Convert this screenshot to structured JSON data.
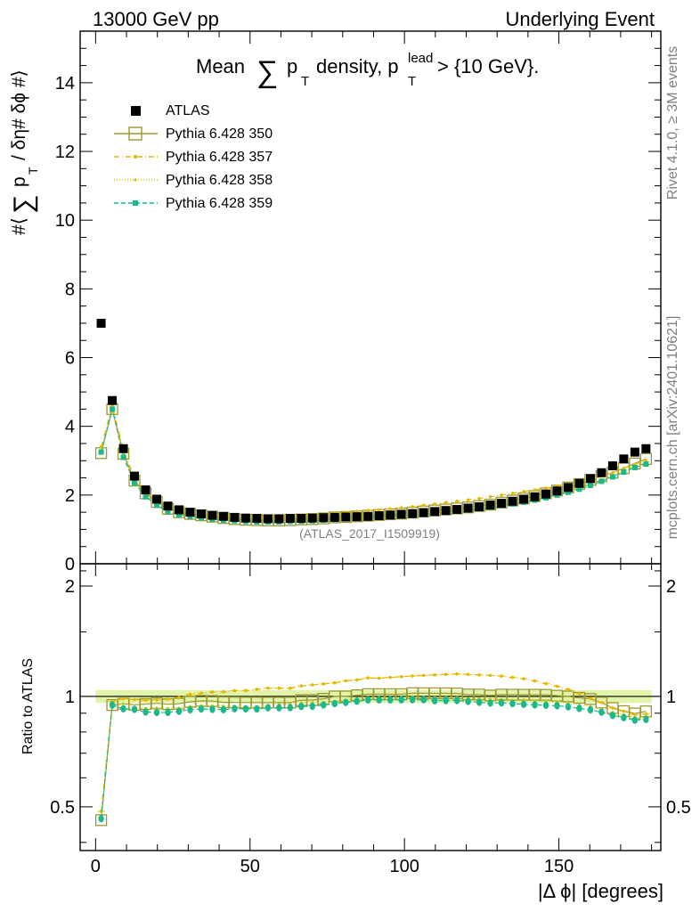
{
  "header": {
    "left": "13000 GeV pp",
    "right": "Underlying Event"
  },
  "side": {
    "rivet": "Rivet 4.1.0, ≥ 3M events",
    "mcplots": "mcplots.cern.ch [arXiv:2401.10621]"
  },
  "chart_data": [
    {
      "type": "scatter",
      "panel": "main",
      "title_parts": {
        "a": "Mean",
        "sum": "∑",
        "p": "p",
        "t": "T",
        "b": "density, p",
        "lead": "lead",
        "t2": "T",
        "c": "> {10 GeV}."
      },
      "ylabel_parts": {
        "a": "#⟨",
        "sum": "∑",
        "p": "p",
        "t": "T",
        "b": "/ δη# δϕ #⟩"
      },
      "watermark": "(ATLAS_2017_I1509919)",
      "xlim": [
        -5,
        183
      ],
      "ylim": [
        0,
        15.5
      ],
      "yticks": [
        0,
        2,
        4,
        6,
        8,
        10,
        12,
        14
      ],
      "yticklabels": [
        "0",
        "2",
        "4",
        "6",
        "8",
        "10",
        "12",
        "14"
      ],
      "x": [
        1.8,
        5.4,
        9.0,
        12.6,
        16.2,
        19.8,
        23.4,
        27.0,
        30.6,
        34.2,
        37.8,
        41.4,
        45.0,
        48.6,
        52.2,
        55.8,
        59.4,
        63.0,
        66.6,
        70.2,
        73.8,
        77.4,
        81.0,
        84.6,
        88.2,
        91.8,
        95.4,
        99.0,
        102.6,
        106.2,
        109.8,
        113.4,
        117.0,
        120.6,
        124.2,
        127.8,
        131.4,
        135.0,
        138.6,
        142.2,
        145.8,
        149.4,
        153.0,
        156.6,
        160.2,
        163.8,
        167.4,
        171.0,
        174.6,
        178.2
      ],
      "series": [
        {
          "name": "ATLAS",
          "color": "#000000",
          "marker": "filled-square",
          "values": [
            7.0,
            4.75,
            3.35,
            2.55,
            2.15,
            1.88,
            1.68,
            1.57,
            1.5,
            1.45,
            1.41,
            1.38,
            1.35,
            1.33,
            1.32,
            1.31,
            1.31,
            1.32,
            1.32,
            1.33,
            1.34,
            1.35,
            1.36,
            1.37,
            1.38,
            1.4,
            1.42,
            1.44,
            1.46,
            1.49,
            1.52,
            1.55,
            1.58,
            1.62,
            1.66,
            1.71,
            1.76,
            1.82,
            1.88,
            1.95,
            2.03,
            2.12,
            2.22,
            2.34,
            2.48,
            2.65,
            2.85,
            3.05,
            3.25,
            3.35
          ]
        },
        {
          "name": "Pythia 6.428 350",
          "color": "#9a9a32",
          "marker": "open-square",
          "values": [
            3.22,
            4.5,
            3.2,
            2.42,
            2.05,
            1.8,
            1.6,
            1.5,
            1.45,
            1.41,
            1.37,
            1.33,
            1.3,
            1.28,
            1.27,
            1.26,
            1.26,
            1.27,
            1.29,
            1.3,
            1.32,
            1.35,
            1.36,
            1.38,
            1.4,
            1.42,
            1.44,
            1.46,
            1.49,
            1.52,
            1.55,
            1.58,
            1.61,
            1.64,
            1.68,
            1.72,
            1.78,
            1.84,
            1.9,
            1.97,
            2.05,
            2.13,
            2.22,
            2.32,
            2.44,
            2.55,
            2.65,
            2.78,
            2.92,
            3.05
          ]
        },
        {
          "name": "Pythia 6.428 357",
          "color": "#e6b800",
          "marker": "small-dot-dashdot",
          "values": [
            3.4,
            4.6,
            3.3,
            2.5,
            2.1,
            1.84,
            1.65,
            1.56,
            1.52,
            1.48,
            1.45,
            1.42,
            1.4,
            1.38,
            1.38,
            1.38,
            1.38,
            1.39,
            1.41,
            1.43,
            1.45,
            1.47,
            1.5,
            1.52,
            1.55,
            1.57,
            1.6,
            1.63,
            1.66,
            1.7,
            1.74,
            1.78,
            1.82,
            1.86,
            1.9,
            1.95,
            2.0,
            2.05,
            2.1,
            2.15,
            2.2,
            2.26,
            2.32,
            2.38,
            2.45,
            2.55,
            2.65,
            2.78,
            2.9,
            3.0
          ]
        },
        {
          "name": "Pythia 6.428 358",
          "color": "#cccc00",
          "marker": "small-dot-dotted",
          "values": [
            3.3,
            4.5,
            3.2,
            2.38,
            2.0,
            1.75,
            1.56,
            1.46,
            1.41,
            1.37,
            1.33,
            1.3,
            1.27,
            1.25,
            1.24,
            1.24,
            1.25,
            1.26,
            1.27,
            1.28,
            1.29,
            1.31,
            1.33,
            1.35,
            1.37,
            1.39,
            1.41,
            1.43,
            1.46,
            1.48,
            1.51,
            1.54,
            1.57,
            1.6,
            1.64,
            1.68,
            1.73,
            1.78,
            1.84,
            1.9,
            1.97,
            2.05,
            2.13,
            2.22,
            2.33,
            2.45,
            2.58,
            2.72,
            2.85,
            2.95
          ]
        },
        {
          "name": "Pythia 6.428 359",
          "color": "#1ab88a",
          "marker": "filled-dot-dashed",
          "values": [
            3.25,
            4.5,
            3.1,
            2.35,
            1.95,
            1.7,
            1.52,
            1.43,
            1.38,
            1.34,
            1.3,
            1.27,
            1.25,
            1.23,
            1.22,
            1.22,
            1.22,
            1.23,
            1.24,
            1.25,
            1.27,
            1.29,
            1.31,
            1.33,
            1.35,
            1.37,
            1.39,
            1.41,
            1.43,
            1.46,
            1.48,
            1.51,
            1.54,
            1.57,
            1.6,
            1.64,
            1.69,
            1.74,
            1.79,
            1.85,
            1.92,
            2.0,
            2.08,
            2.17,
            2.28,
            2.4,
            2.53,
            2.67,
            2.8,
            2.9
          ]
        }
      ]
    },
    {
      "type": "line",
      "panel": "ratio",
      "ylabel": "Ratio to ATLAS",
      "xlabel": "|Δ ϕ| [degrees]",
      "xlim": [
        -5,
        183
      ],
      "ylim": [
        0.38,
        2.3
      ],
      "yscale": "log",
      "yticks": [
        0.5,
        1,
        2
      ],
      "yticklabels": [
        "0.5",
        "1",
        "2"
      ],
      "xticks": [
        0,
        50,
        100,
        150
      ],
      "xticklabels": [
        "0",
        "50",
        "100",
        "150"
      ],
      "band": [
        0.96,
        1.04
      ]
    }
  ]
}
